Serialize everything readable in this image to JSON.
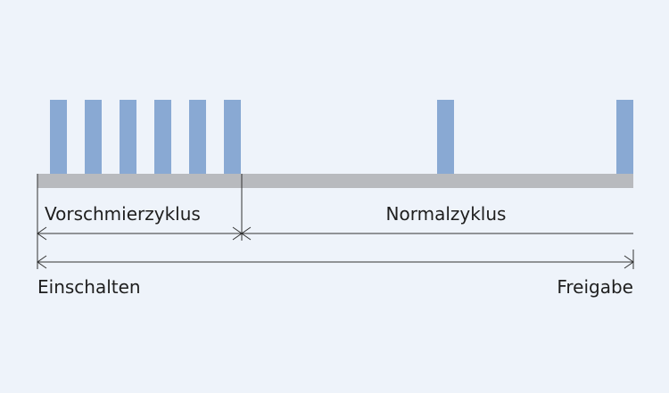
{
  "labels": {
    "pre_cycle": "Vorschmierzyklus",
    "normal_cycle": "Normalzyklus",
    "start": "Einschalten",
    "release": "Freigabe"
  }
}
